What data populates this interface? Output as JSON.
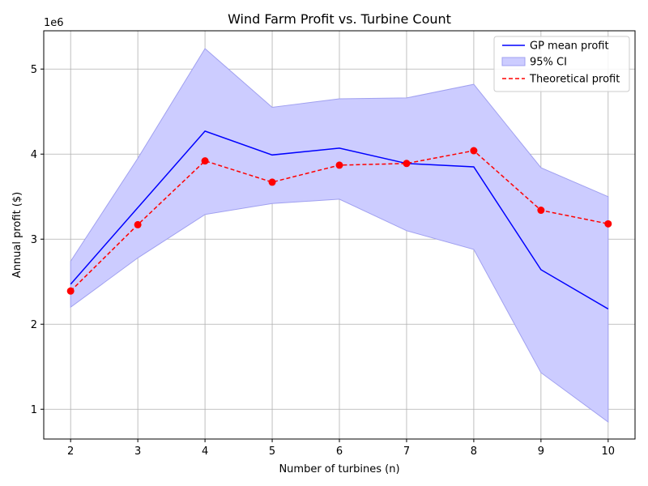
{
  "chart_data": {
    "type": "line",
    "title": "Wind Farm Profit vs. Turbine Count",
    "xlabel": "Number of turbines (n)",
    "ylabel": "Annual profit ($)",
    "y_offset_label": "1e6",
    "xlim": [
      1.6,
      10.4
    ],
    "ylim": [
      650000,
      5450000
    ],
    "xticks": [
      2,
      3,
      4,
      5,
      6,
      7,
      8,
      9,
      10
    ],
    "yticks": [
      1000000,
      2000000,
      3000000,
      4000000,
      5000000
    ],
    "ytick_labels": [
      "1",
      "2",
      "3",
      "4",
      "5"
    ],
    "grid": true,
    "legend_position": "top-right",
    "x": [
      2,
      3,
      4,
      5,
      6,
      7,
      8,
      9,
      10
    ],
    "series": [
      {
        "name": "GP mean profit",
        "kind": "line",
        "color": "#0000ff",
        "values": [
          2470000,
          3370000,
          4270000,
          3990000,
          4070000,
          3890000,
          3850000,
          2640000,
          2180000
        ]
      },
      {
        "name": "95% CI",
        "kind": "band",
        "color": "#ccccff",
        "edge_color": "#a0a0f0",
        "lower": [
          2200000,
          2780000,
          3290000,
          3420000,
          3470000,
          3100000,
          2880000,
          1430000,
          850000
        ],
        "upper": [
          2740000,
          3950000,
          5240000,
          4550000,
          4650000,
          4660000,
          4820000,
          3840000,
          3500000
        ]
      },
      {
        "name": "Theoretical profit",
        "kind": "dashed-line-with-markers",
        "color": "#ff0000",
        "values": [
          2390000,
          3170000,
          3920000,
          3670000,
          3870000,
          3890000,
          4040000,
          3340000,
          3180000
        ]
      }
    ]
  }
}
